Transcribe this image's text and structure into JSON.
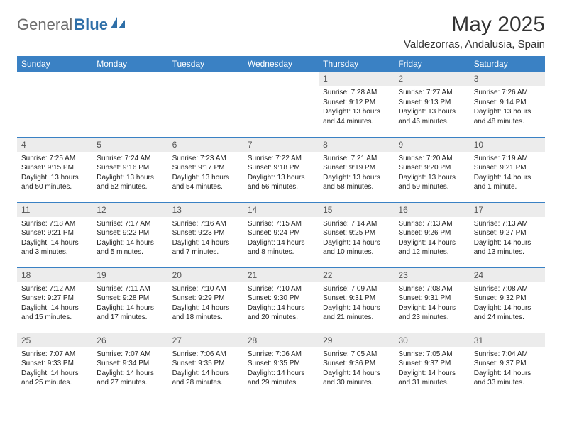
{
  "logo": {
    "part1": "General",
    "part2": "Blue"
  },
  "title": "May 2025",
  "subtitle": "Valdezorras, Andalusia, Spain",
  "colors": {
    "header_bg": "#3a81c4",
    "header_text": "#ffffff",
    "daynum_bg": "#ececec",
    "row_divider": "#3a81c4",
    "title_color": "#333333",
    "logo_gray": "#6b6b6b",
    "logo_blue": "#2f6fa8"
  },
  "daysOfWeek": [
    "Sunday",
    "Monday",
    "Tuesday",
    "Wednesday",
    "Thursday",
    "Friday",
    "Saturday"
  ],
  "weeks": [
    [
      null,
      null,
      null,
      null,
      {
        "n": "1",
        "sunrise": "7:28 AM",
        "sunset": "9:12 PM",
        "daylight": "13 hours and 44 minutes."
      },
      {
        "n": "2",
        "sunrise": "7:27 AM",
        "sunset": "9:13 PM",
        "daylight": "13 hours and 46 minutes."
      },
      {
        "n": "3",
        "sunrise": "7:26 AM",
        "sunset": "9:14 PM",
        "daylight": "13 hours and 48 minutes."
      }
    ],
    [
      {
        "n": "4",
        "sunrise": "7:25 AM",
        "sunset": "9:15 PM",
        "daylight": "13 hours and 50 minutes."
      },
      {
        "n": "5",
        "sunrise": "7:24 AM",
        "sunset": "9:16 PM",
        "daylight": "13 hours and 52 minutes."
      },
      {
        "n": "6",
        "sunrise": "7:23 AM",
        "sunset": "9:17 PM",
        "daylight": "13 hours and 54 minutes."
      },
      {
        "n": "7",
        "sunrise": "7:22 AM",
        "sunset": "9:18 PM",
        "daylight": "13 hours and 56 minutes."
      },
      {
        "n": "8",
        "sunrise": "7:21 AM",
        "sunset": "9:19 PM",
        "daylight": "13 hours and 58 minutes."
      },
      {
        "n": "9",
        "sunrise": "7:20 AM",
        "sunset": "9:20 PM",
        "daylight": "13 hours and 59 minutes."
      },
      {
        "n": "10",
        "sunrise": "7:19 AM",
        "sunset": "9:21 PM",
        "daylight": "14 hours and 1 minute."
      }
    ],
    [
      {
        "n": "11",
        "sunrise": "7:18 AM",
        "sunset": "9:21 PM",
        "daylight": "14 hours and 3 minutes."
      },
      {
        "n": "12",
        "sunrise": "7:17 AM",
        "sunset": "9:22 PM",
        "daylight": "14 hours and 5 minutes."
      },
      {
        "n": "13",
        "sunrise": "7:16 AM",
        "sunset": "9:23 PM",
        "daylight": "14 hours and 7 minutes."
      },
      {
        "n": "14",
        "sunrise": "7:15 AM",
        "sunset": "9:24 PM",
        "daylight": "14 hours and 8 minutes."
      },
      {
        "n": "15",
        "sunrise": "7:14 AM",
        "sunset": "9:25 PM",
        "daylight": "14 hours and 10 minutes."
      },
      {
        "n": "16",
        "sunrise": "7:13 AM",
        "sunset": "9:26 PM",
        "daylight": "14 hours and 12 minutes."
      },
      {
        "n": "17",
        "sunrise": "7:13 AM",
        "sunset": "9:27 PM",
        "daylight": "14 hours and 13 minutes."
      }
    ],
    [
      {
        "n": "18",
        "sunrise": "7:12 AM",
        "sunset": "9:27 PM",
        "daylight": "14 hours and 15 minutes."
      },
      {
        "n": "19",
        "sunrise": "7:11 AM",
        "sunset": "9:28 PM",
        "daylight": "14 hours and 17 minutes."
      },
      {
        "n": "20",
        "sunrise": "7:10 AM",
        "sunset": "9:29 PM",
        "daylight": "14 hours and 18 minutes."
      },
      {
        "n": "21",
        "sunrise": "7:10 AM",
        "sunset": "9:30 PM",
        "daylight": "14 hours and 20 minutes."
      },
      {
        "n": "22",
        "sunrise": "7:09 AM",
        "sunset": "9:31 PM",
        "daylight": "14 hours and 21 minutes."
      },
      {
        "n": "23",
        "sunrise": "7:08 AM",
        "sunset": "9:31 PM",
        "daylight": "14 hours and 23 minutes."
      },
      {
        "n": "24",
        "sunrise": "7:08 AM",
        "sunset": "9:32 PM",
        "daylight": "14 hours and 24 minutes."
      }
    ],
    [
      {
        "n": "25",
        "sunrise": "7:07 AM",
        "sunset": "9:33 PM",
        "daylight": "14 hours and 25 minutes."
      },
      {
        "n": "26",
        "sunrise": "7:07 AM",
        "sunset": "9:34 PM",
        "daylight": "14 hours and 27 minutes."
      },
      {
        "n": "27",
        "sunrise": "7:06 AM",
        "sunset": "9:35 PM",
        "daylight": "14 hours and 28 minutes."
      },
      {
        "n": "28",
        "sunrise": "7:06 AM",
        "sunset": "9:35 PM",
        "daylight": "14 hours and 29 minutes."
      },
      {
        "n": "29",
        "sunrise": "7:05 AM",
        "sunset": "9:36 PM",
        "daylight": "14 hours and 30 minutes."
      },
      {
        "n": "30",
        "sunrise": "7:05 AM",
        "sunset": "9:37 PM",
        "daylight": "14 hours and 31 minutes."
      },
      {
        "n": "31",
        "sunrise": "7:04 AM",
        "sunset": "9:37 PM",
        "daylight": "14 hours and 33 minutes."
      }
    ]
  ],
  "labels": {
    "sunrise": "Sunrise:",
    "sunset": "Sunset:",
    "daylight": "Daylight:"
  }
}
